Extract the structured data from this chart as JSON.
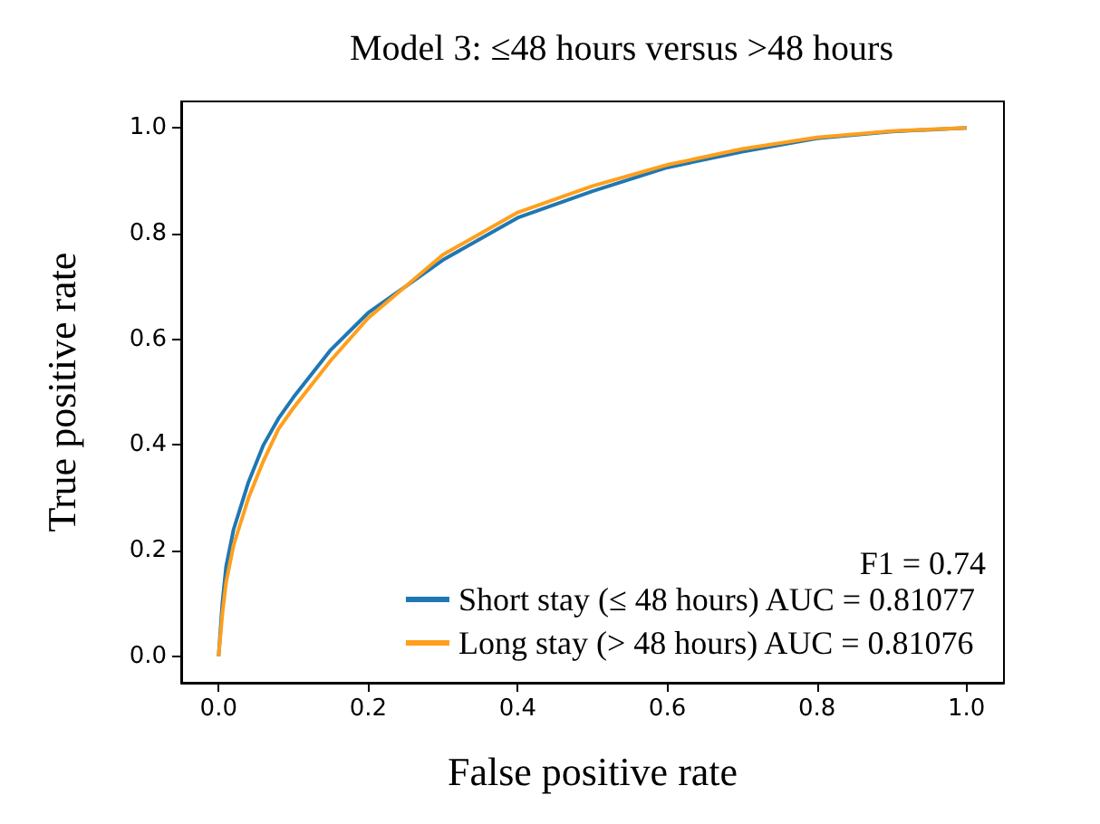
{
  "chart_data": {
    "type": "line",
    "title": "Model 3: ≤48 hours versus >48 hours",
    "xlabel": "False positive rate",
    "ylabel": "True positive rate",
    "legend_title": "F1 = 0.74",
    "legend": "bottom right",
    "grid": false,
    "marker": "none",
    "line_style": "solid",
    "xlim": [
      -0.05,
      1.05
    ],
    "ylim": [
      -0.05,
      1.05
    ],
    "xticks": [
      {
        "value": 0,
        "label": "0.0"
      },
      0.2,
      0.4,
      0.6,
      0.8,
      {
        "value": 1,
        "label": "1.0"
      }
    ],
    "yticks": [
      {
        "value": 0,
        "label": "0.0"
      },
      0.2,
      0.4,
      0.6,
      0.8,
      {
        "value": 1,
        "label": "1.0"
      }
    ],
    "x": [
      0,
      0.005,
      0.01,
      0.02,
      0.04,
      0.06,
      0.08,
      0.1,
      0.15,
      0.2,
      0.25,
      0.3,
      0.35,
      0.4,
      0.5,
      0.6,
      0.7,
      0.8,
      0.9,
      1
    ],
    "series": [
      {
        "name": "Short stay (≤ 48 hours) AUC = 0.81077",
        "color": "#1f77b4",
        "values": [
          0,
          0.1,
          0.17,
          0.24,
          0.33,
          0.4,
          0.45,
          0.49,
          0.58,
          0.65,
          0.7,
          0.75,
          0.79,
          0.83,
          0.88,
          0.925,
          0.955,
          0.98,
          0.993,
          1
        ]
      },
      {
        "name": "Long stay (> 48 hours) AUC = 0.81076",
        "color": "#ff9f1c",
        "values": [
          0,
          0.08,
          0.14,
          0.21,
          0.3,
          0.37,
          0.43,
          0.47,
          0.56,
          0.64,
          0.7,
          0.76,
          0.8,
          0.84,
          0.89,
          0.93,
          0.96,
          0.982,
          0.994,
          1
        ]
      }
    ]
  }
}
